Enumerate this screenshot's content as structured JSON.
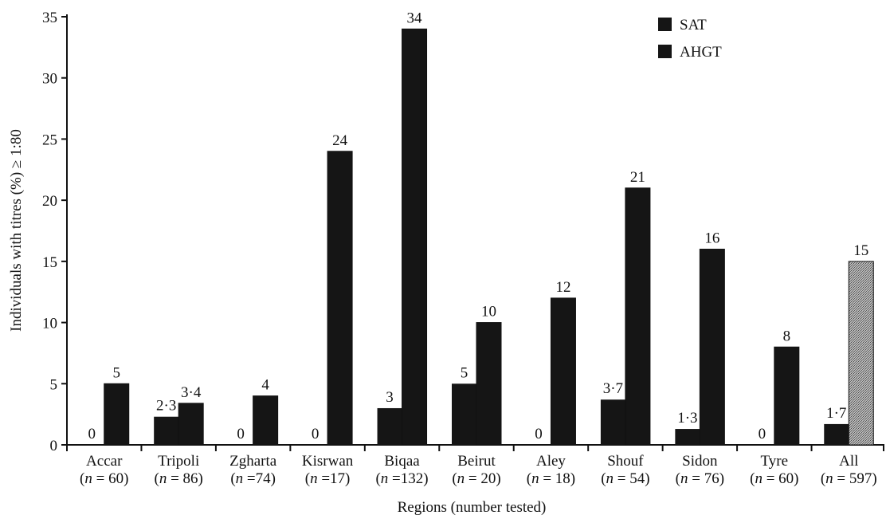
{
  "chart_data": {
    "type": "bar",
    "xlabel": "Regions (number tested)",
    "ylabel": "Individuals with titres (%) ≥ 1:80",
    "ylim": [
      0,
      35
    ],
    "yticks": [
      0,
      5,
      10,
      15,
      20,
      25,
      30,
      35
    ],
    "grid": false,
    "legend_position": "top-right",
    "categories": [
      {
        "name": "Accar",
        "n": "(n = 60)"
      },
      {
        "name": "Tripoli",
        "n": "(n = 86)"
      },
      {
        "name": "Zgharta",
        "n": "(n =74)"
      },
      {
        "name": "Kisrwan",
        "n": "(n =17)"
      },
      {
        "name": "Biqaa",
        "n": "(n =132)"
      },
      {
        "name": "Beirut",
        "n": "(n = 20)"
      },
      {
        "name": "Aley",
        "n": "(n = 18)"
      },
      {
        "name": "Shouf",
        "n": "(n = 54)"
      },
      {
        "name": "Sidon",
        "n": "(n = 76)"
      },
      {
        "name": "Tyre",
        "n": "(n = 60)"
      },
      {
        "name": "All",
        "n": "(n = 597)"
      }
    ],
    "series": [
      {
        "name": "SAT",
        "color": "#151515",
        "values": [
          0,
          2.3,
          0,
          0,
          3,
          5,
          0,
          3.7,
          1.3,
          0,
          1.7
        ],
        "labels": [
          "0",
          "2·3",
          "0",
          "0",
          "3",
          "5",
          "0",
          "3·7",
          "1·3",
          "0",
          "1·7"
        ]
      },
      {
        "name": "AHGT",
        "color": "#151515",
        "values": [
          5,
          3.4,
          4,
          24,
          34,
          10,
          12,
          21,
          16,
          8,
          15
        ],
        "labels": [
          "5",
          "3·4",
          "4",
          "24",
          "34",
          "10",
          "12",
          "21",
          "16",
          "8",
          "15"
        ],
        "highlight_last_color": "#9a9a9a"
      }
    ]
  }
}
